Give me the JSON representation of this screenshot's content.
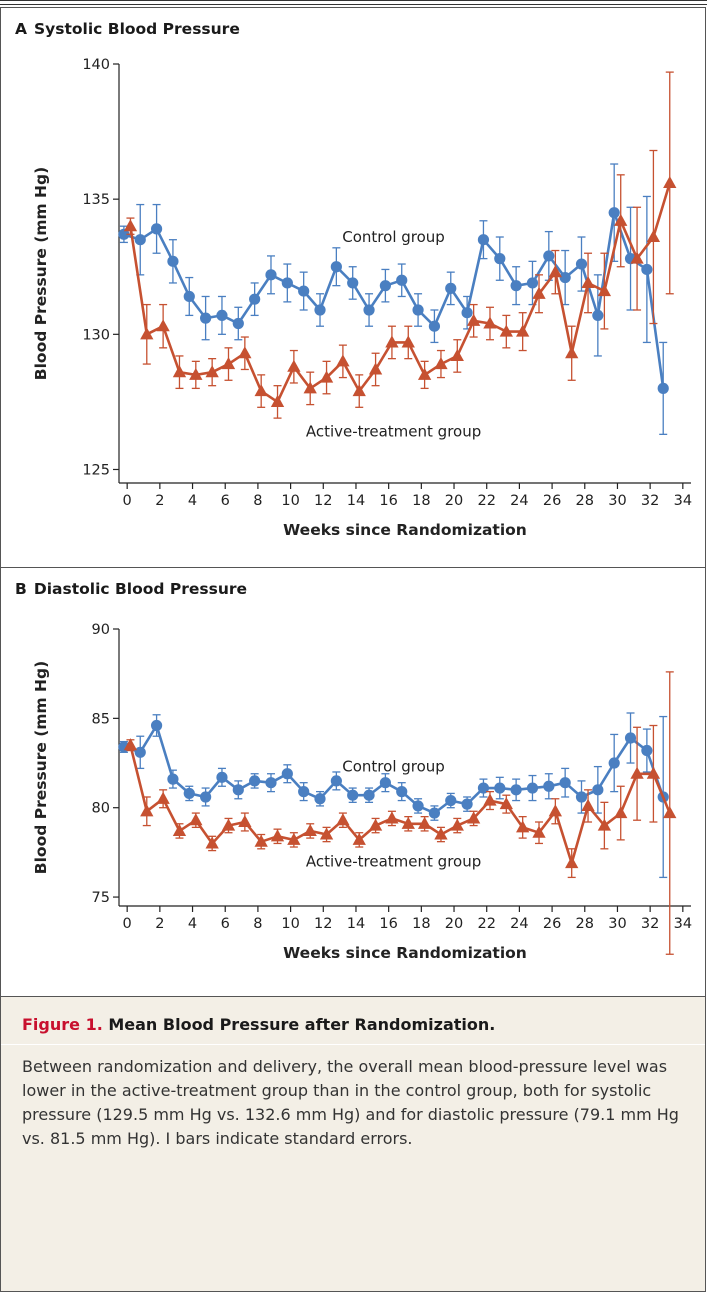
{
  "chart_data": [
    {
      "type": "line",
      "panel_letter": "A",
      "title": "Systolic Blood Pressure",
      "xlabel": "Weeks since Randomization",
      "ylabel": "Blood Pressure (mm Hg)",
      "xlim": [
        -0.5,
        34.5
      ],
      "ylim": [
        124.5,
        140
      ],
      "x_ticks": [
        0,
        2,
        4,
        6,
        8,
        10,
        12,
        14,
        16,
        18,
        20,
        22,
        24,
        26,
        28,
        30,
        32,
        34
      ],
      "y_ticks": [
        125,
        130,
        135,
        140
      ],
      "grid": false,
      "annotations": [
        {
          "text": "Control group",
          "x": 16.3,
          "y": 133.6
        },
        {
          "text": "Active-treatment group",
          "x": 16.3,
          "y": 126.4
        }
      ],
      "series": [
        {
          "label": "Control group",
          "marker": "circle",
          "color": "#4a7fc1",
          "x": [
            -0.2,
            0.8,
            1.8,
            2.8,
            3.8,
            4.8,
            5.8,
            6.8,
            7.8,
            8.8,
            9.8,
            10.8,
            11.8,
            12.8,
            13.8,
            14.8,
            15.8,
            16.8,
            17.8,
            18.8,
            19.8,
            20.8,
            21.8,
            22.8,
            23.8,
            24.8,
            25.8,
            26.8,
            27.8,
            28.8,
            29.8,
            30.8,
            31.8,
            32.8
          ],
          "y": [
            133.7,
            133.5,
            133.9,
            132.7,
            131.4,
            130.6,
            130.7,
            130.4,
            131.3,
            132.2,
            131.9,
            131.6,
            130.9,
            132.5,
            131.9,
            130.9,
            131.8,
            132.0,
            130.9,
            130.3,
            131.7,
            130.8,
            133.5,
            132.8,
            131.8,
            131.9,
            132.9,
            132.1,
            132.6,
            130.7,
            134.5,
            132.8,
            132.4,
            128.0
          ],
          "error": [
            0.3,
            1.3,
            0.9,
            0.8,
            0.7,
            0.8,
            0.7,
            0.6,
            0.6,
            0.7,
            0.7,
            0.7,
            0.6,
            0.7,
            0.6,
            0.6,
            0.6,
            0.6,
            0.6,
            0.6,
            0.6,
            0.6,
            0.7,
            0.8,
            0.7,
            0.8,
            0.9,
            1.0,
            1.0,
            1.5,
            1.8,
            1.9,
            2.7,
            1.7
          ]
        },
        {
          "label": "Active-treatment group",
          "marker": "triangle",
          "color": "#c65131",
          "x": [
            0.2,
            1.2,
            2.2,
            3.2,
            4.2,
            5.2,
            6.2,
            7.2,
            8.2,
            9.2,
            10.2,
            11.2,
            12.2,
            13.2,
            14.2,
            15.2,
            16.2,
            17.2,
            18.2,
            19.2,
            20.2,
            21.2,
            22.2,
            23.2,
            24.2,
            25.2,
            26.2,
            27.2,
            28.2,
            29.2,
            30.2,
            31.2,
            32.2,
            33.2
          ],
          "y": [
            134.0,
            130.0,
            130.3,
            128.6,
            128.5,
            128.6,
            128.9,
            129.3,
            127.9,
            127.5,
            128.8,
            128.0,
            128.4,
            129.0,
            127.9,
            128.7,
            129.7,
            129.7,
            128.5,
            128.9,
            129.2,
            130.5,
            130.4,
            130.1,
            130.1,
            131.5,
            132.3,
            129.3,
            131.9,
            131.6,
            134.2,
            132.8,
            133.6,
            135.6
          ],
          "error": [
            0.3,
            1.1,
            0.8,
            0.6,
            0.5,
            0.5,
            0.6,
            0.6,
            0.6,
            0.6,
            0.6,
            0.6,
            0.6,
            0.6,
            0.6,
            0.6,
            0.6,
            0.6,
            0.5,
            0.5,
            0.6,
            0.6,
            0.6,
            0.6,
            0.7,
            0.7,
            0.8,
            1.0,
            1.1,
            1.4,
            1.7,
            1.9,
            3.2,
            4.1
          ]
        }
      ]
    },
    {
      "type": "line",
      "panel_letter": "B",
      "title": "Diastolic Blood Pressure",
      "xlabel": "Weeks since Randomization",
      "ylabel": "Blood Pressure (mm Hg)",
      "xlim": [
        -0.5,
        34.5
      ],
      "ylim": [
        74.5,
        90
      ],
      "x_ticks": [
        0,
        2,
        4,
        6,
        8,
        10,
        12,
        14,
        16,
        18,
        20,
        22,
        24,
        26,
        28,
        30,
        32,
        34
      ],
      "y_ticks": [
        75,
        80,
        85,
        90
      ],
      "grid": false,
      "annotations": [
        {
          "text": "Control group",
          "x": 16.3,
          "y": 82.3
        },
        {
          "text": "Active-treatment group",
          "x": 16.3,
          "y": 77.0
        }
      ],
      "series": [
        {
          "label": "Control group",
          "marker": "circle",
          "color": "#4a7fc1",
          "x": [
            -0.2,
            0.8,
            1.8,
            2.8,
            3.8,
            4.8,
            5.8,
            6.8,
            7.8,
            8.8,
            9.8,
            10.8,
            11.8,
            12.8,
            13.8,
            14.8,
            15.8,
            16.8,
            17.8,
            18.8,
            19.8,
            20.8,
            21.8,
            22.8,
            23.8,
            24.8,
            25.8,
            26.8,
            27.8,
            28.8,
            29.8,
            30.8,
            31.8,
            32.8
          ],
          "y": [
            83.4,
            83.1,
            84.6,
            81.6,
            80.8,
            80.6,
            81.7,
            81.0,
            81.5,
            81.4,
            81.9,
            80.9,
            80.5,
            81.5,
            80.7,
            80.7,
            81.4,
            80.9,
            80.1,
            79.7,
            80.4,
            80.2,
            81.1,
            81.1,
            81.0,
            81.1,
            81.2,
            81.4,
            80.6,
            81.0,
            82.5,
            83.9,
            83.2,
            80.6
          ],
          "error": [
            0.3,
            0.9,
            0.6,
            0.5,
            0.4,
            0.5,
            0.5,
            0.5,
            0.4,
            0.5,
            0.5,
            0.5,
            0.4,
            0.5,
            0.4,
            0.4,
            0.5,
            0.5,
            0.4,
            0.4,
            0.4,
            0.4,
            0.5,
            0.6,
            0.6,
            0.7,
            0.7,
            0.8,
            0.9,
            1.3,
            1.6,
            1.4,
            1.2,
            4.5
          ]
        },
        {
          "label": "Active-treatment group",
          "marker": "triangle",
          "color": "#c65131",
          "x": [
            0.2,
            1.2,
            2.2,
            3.2,
            4.2,
            5.2,
            6.2,
            7.2,
            8.2,
            9.2,
            10.2,
            11.2,
            12.2,
            13.2,
            14.2,
            15.2,
            16.2,
            17.2,
            18.2,
            19.2,
            20.2,
            21.2,
            22.2,
            23.2,
            24.2,
            25.2,
            26.2,
            27.2,
            28.2,
            29.2,
            30.2,
            31.2,
            32.2,
            33.2
          ],
          "y": [
            83.5,
            79.8,
            80.5,
            78.7,
            79.3,
            78.0,
            79.0,
            79.2,
            78.1,
            78.4,
            78.2,
            78.7,
            78.5,
            79.3,
            78.2,
            79.0,
            79.4,
            79.1,
            79.1,
            78.5,
            79.0,
            79.4,
            80.4,
            80.2,
            78.9,
            78.6,
            79.8,
            76.9,
            80.1,
            79.0,
            79.7,
            81.9,
            81.9,
            79.7
          ],
          "error": [
            0.3,
            0.8,
            0.5,
            0.4,
            0.4,
            0.4,
            0.4,
            0.5,
            0.4,
            0.4,
            0.4,
            0.4,
            0.4,
            0.4,
            0.4,
            0.4,
            0.4,
            0.4,
            0.4,
            0.4,
            0.4,
            0.4,
            0.5,
            0.5,
            0.6,
            0.6,
            0.7,
            0.8,
            0.9,
            1.3,
            1.5,
            2.6,
            2.7,
            7.9
          ]
        }
      ]
    }
  ],
  "caption": {
    "figure_label": "Figure 1.",
    "title": "Mean Blood Pressure after Randomization.",
    "text": "Between randomization and delivery, the overall mean blood-pressure level was lower in the active-treatment group than in the control group, both for systolic pressure (129.5 mm Hg vs. 132.6 mm Hg) and for diastolic pressure (79.1 mm Hg vs. 81.5 mm Hg). I bars indicate standard errors."
  },
  "colors": {
    "control": "#4a7fc1",
    "active": "#c65131",
    "caption_background": "#f3efe6",
    "caption_figure_label": "#c8102e"
  }
}
